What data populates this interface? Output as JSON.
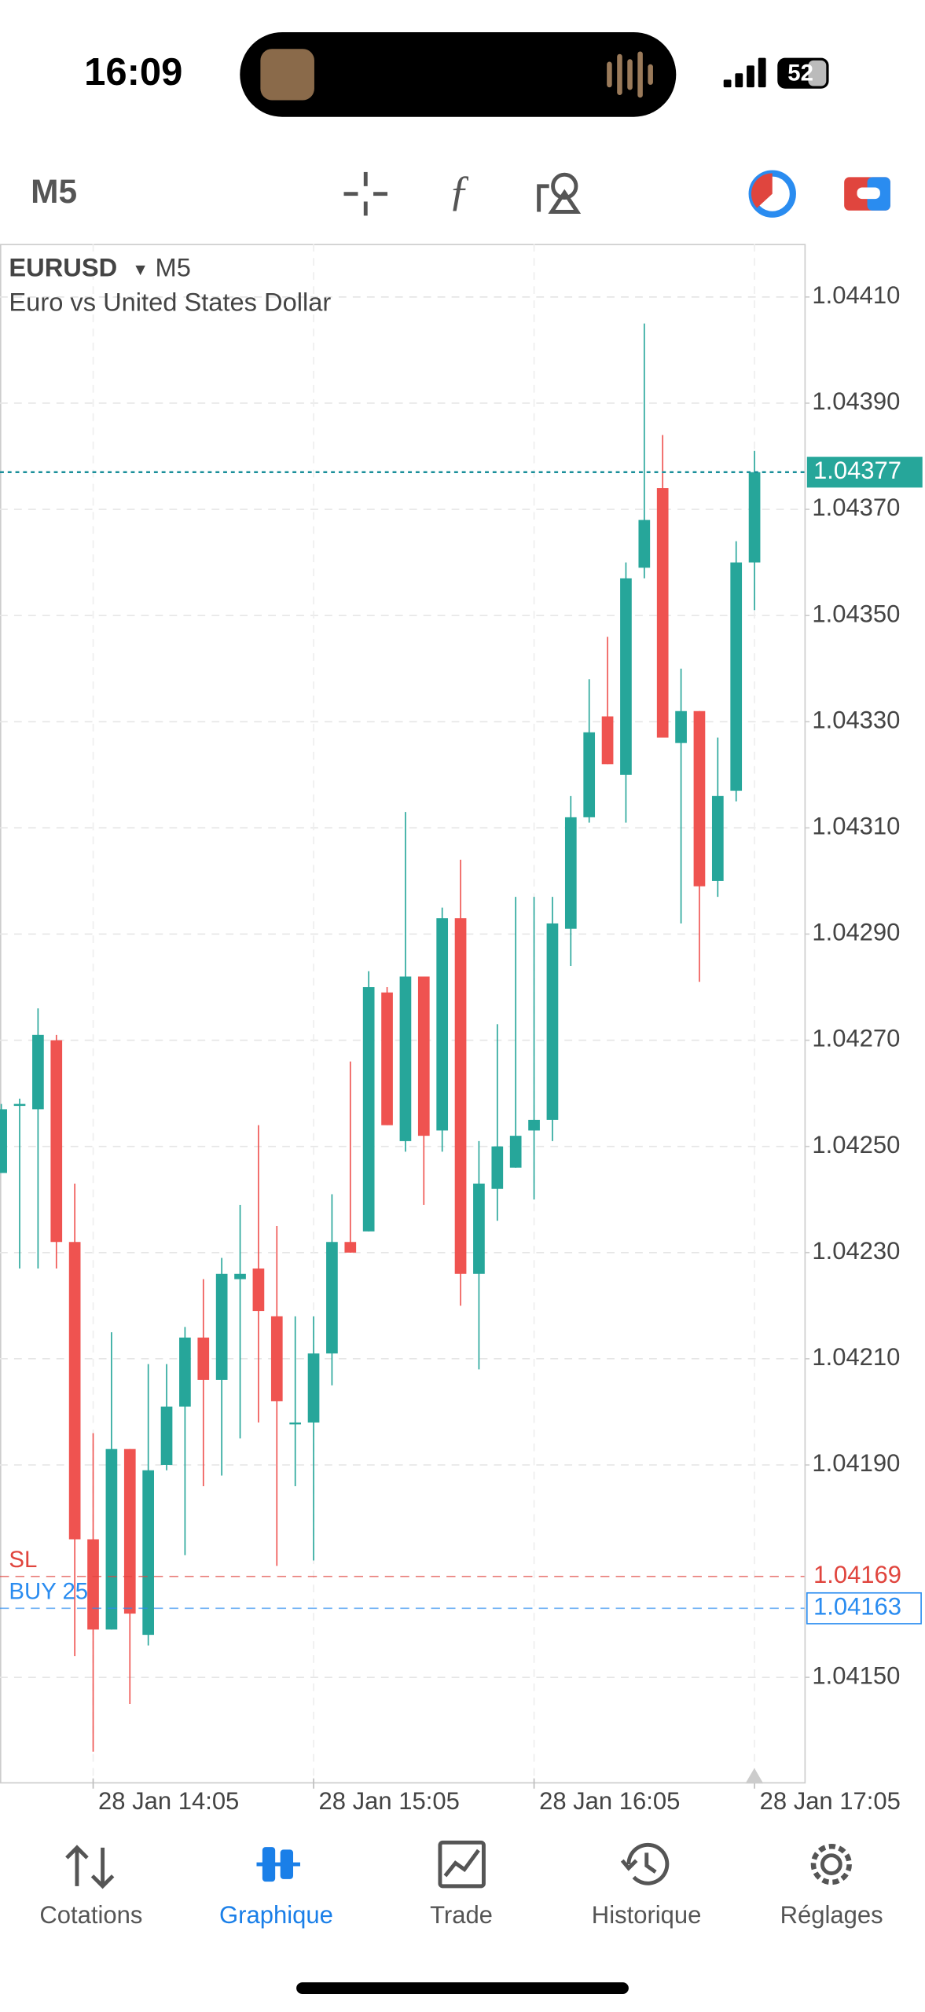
{
  "status_bar": {
    "time": "16:09",
    "battery": "52"
  },
  "toolbar": {
    "timeframe": "M5"
  },
  "chart_data": {
    "type": "candlestick",
    "symbol": "EURUSD",
    "timeframe": "M5",
    "description": "Euro vs United States Dollar",
    "categories": [
      null,
      null,
      null,
      null,
      null,
      "28 Jan 14:05",
      null,
      null,
      null,
      null,
      null,
      null,
      null,
      null,
      null,
      null,
      null,
      "28 Jan 15:05",
      null,
      null,
      null,
      null,
      null,
      null,
      null,
      null,
      null,
      null,
      null,
      "28 Jan 16:05",
      null,
      null,
      null,
      null,
      null,
      null,
      null,
      null,
      null,
      null,
      null,
      "28 Jan 17:05"
    ],
    "open": [
      1.04245,
      1.04258,
      1.04257,
      1.0427,
      1.04232,
      1.04176,
      1.04159,
      1.04193,
      1.04158,
      1.0419,
      1.04201,
      1.04214,
      1.04206,
      1.04225,
      1.04227,
      1.04218,
      1.04198,
      1.04198,
      1.04211,
      1.04232,
      1.04234,
      1.04279,
      1.04251,
      1.04282,
      1.04253,
      1.04293,
      1.04226,
      1.04242,
      1.04246,
      1.04253,
      1.04255,
      1.04291,
      1.04312,
      1.04331,
      1.0432,
      1.04359,
      1.04374,
      1.04326,
      1.04332,
      1.043,
      1.04317,
      1.0436
    ],
    "high": [
      1.04258,
      1.04259,
      1.04276,
      1.04271,
      1.04243,
      1.04196,
      1.04215,
      1.04193,
      1.04209,
      1.04209,
      1.04216,
      1.04225,
      1.04229,
      1.04239,
      1.04254,
      1.04235,
      1.04218,
      1.04218,
      1.04241,
      1.04266,
      1.04283,
      1.0428,
      1.04313,
      1.04282,
      1.04295,
      1.04304,
      1.04251,
      1.04273,
      1.04297,
      1.04297,
      1.04297,
      1.04316,
      1.04338,
      1.04346,
      1.0436,
      1.04405,
      1.04384,
      1.0434,
      1.04332,
      1.04327,
      1.04364,
      1.04381
    ],
    "low": [
      1.04245,
      1.04227,
      1.04227,
      1.04227,
      1.04154,
      1.04136,
      1.04159,
      1.04145,
      1.04156,
      1.04189,
      1.04173,
      1.04186,
      1.04188,
      1.04195,
      1.04198,
      1.04171,
      1.04186,
      1.04172,
      1.04205,
      1.0423,
      1.04234,
      1.04254,
      1.04249,
      1.04239,
      1.04249,
      1.0422,
      1.04208,
      1.04236,
      1.04246,
      1.0424,
      1.04251,
      1.04284,
      1.04311,
      1.04322,
      1.04311,
      1.04357,
      1.04327,
      1.04292,
      1.04281,
      1.04297,
      1.04315,
      1.04351
    ],
    "close": [
      1.04257,
      1.04258,
      1.04271,
      1.04232,
      1.04176,
      1.04159,
      1.04193,
      1.04162,
      1.04189,
      1.04201,
      1.04214,
      1.04206,
      1.04226,
      1.04226,
      1.04219,
      1.04202,
      1.04198,
      1.04211,
      1.04232,
      1.0423,
      1.0428,
      1.04254,
      1.04282,
      1.04252,
      1.04293,
      1.04226,
      1.04243,
      1.0425,
      1.04252,
      1.04255,
      1.04292,
      1.04312,
      1.04328,
      1.04322,
      1.04357,
      1.04368,
      1.04327,
      1.04332,
      1.04299,
      1.04316,
      1.0436,
      1.04377
    ],
    "up_color": "#26a69a",
    "down_color": "#ef5350",
    "ylim": [
      1.0413,
      1.0442
    ],
    "yticks": [
      {
        "value": 1.0415,
        "label": "1.04150"
      },
      {
        "value": 1.0419,
        "label": "1.04190"
      },
      {
        "value": 1.0421,
        "label": "1.04210"
      },
      {
        "value": 1.0423,
        "label": "1.04230"
      },
      {
        "value": 1.0425,
        "label": "1.04250"
      },
      {
        "value": 1.0427,
        "label": "1.04270"
      },
      {
        "value": 1.0429,
        "label": "1.04290"
      },
      {
        "value": 1.0431,
        "label": "1.04310"
      },
      {
        "value": 1.0433,
        "label": "1.04330"
      },
      {
        "value": 1.0435,
        "label": "1.04350"
      },
      {
        "value": 1.0437,
        "label": "1.04370"
      },
      {
        "value": 1.0439,
        "label": "1.04390"
      },
      {
        "value": 1.0441,
        "label": "1.04410"
      }
    ],
    "grid": true,
    "current_price": 1.04377,
    "orders": [
      {
        "label": "SL",
        "price": 1.04169,
        "color": "#e0453e"
      },
      {
        "label": "BUY 25",
        "price": 1.04163,
        "color": "#2a8cf0"
      }
    ]
  },
  "nav": [
    "Cotations",
    "Graphique",
    "Trade",
    "Historique",
    "Réglages"
  ],
  "nav_active": 1
}
